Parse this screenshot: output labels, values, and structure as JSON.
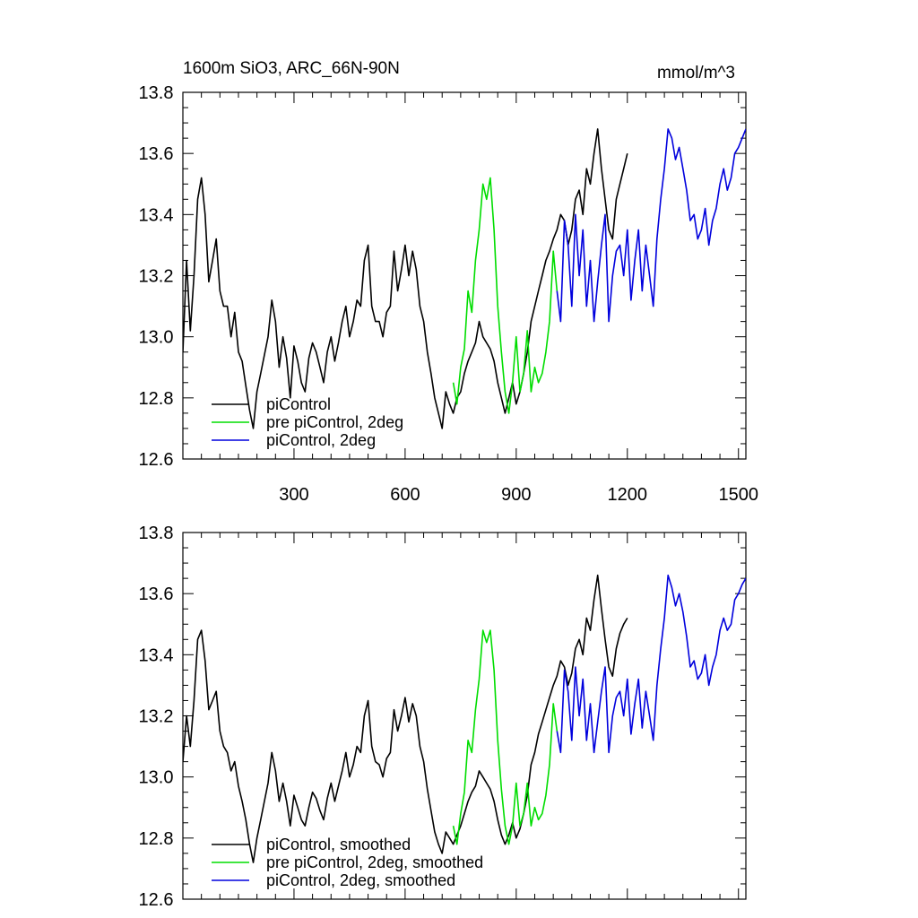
{
  "chart_data": [
    {
      "type": "line",
      "title": "1600m SiO3, ARC_66N-90N",
      "units": "mmol/m^3",
      "xlabel": "",
      "ylabel": "",
      "xlim": [
        0,
        1520
      ],
      "ylim": [
        12.6,
        13.8
      ],
      "xticks": [
        300,
        600,
        900,
        1200,
        1500
      ],
      "yticks": [
        12.6,
        12.8,
        13.0,
        13.2,
        13.4,
        13.6,
        13.8
      ],
      "x_tick_labels": [
        "300",
        "600",
        "900",
        "1200",
        "1500"
      ],
      "y_tick_labels": [
        "12.6",
        "12.8",
        "13.0",
        "13.2",
        "13.4",
        "13.6",
        "13.8"
      ],
      "legend_position": "bottom-left",
      "series": [
        {
          "name": "piControl",
          "color": "#000000",
          "x": [
            0,
            10,
            20,
            30,
            40,
            50,
            60,
            70,
            80,
            90,
            100,
            110,
            120,
            130,
            140,
            150,
            160,
            170,
            180,
            190,
            200,
            210,
            220,
            230,
            240,
            250,
            260,
            270,
            280,
            290,
            300,
            310,
            320,
            330,
            340,
            350,
            360,
            370,
            380,
            390,
            400,
            410,
            420,
            430,
            440,
            450,
            460,
            470,
            480,
            490,
            500,
            510,
            520,
            530,
            540,
            550,
            560,
            570,
            580,
            590,
            600,
            610,
            620,
            630,
            640,
            650,
            660,
            670,
            680,
            690,
            700,
            710,
            720,
            730,
            740,
            750,
            760,
            770,
            780,
            790,
            800,
            810,
            820,
            830,
            840,
            850,
            860,
            870,
            880,
            890,
            900,
            910,
            920,
            930,
            940,
            950,
            960,
            970,
            980,
            990,
            1000,
            1010,
            1020,
            1030,
            1040,
            1050,
            1060,
            1070,
            1080,
            1090,
            1100,
            1110,
            1120,
            1130,
            1140,
            1150,
            1160,
            1170,
            1180,
            1190,
            1200
          ],
          "values": [
            12.95,
            13.25,
            13.02,
            13.2,
            13.45,
            13.52,
            13.4,
            13.18,
            13.25,
            13.32,
            13.15,
            13.1,
            13.1,
            13.0,
            13.08,
            12.95,
            12.92,
            12.84,
            12.76,
            12.7,
            12.82,
            12.88,
            12.94,
            13.0,
            13.12,
            13.05,
            12.9,
            13.0,
            12.93,
            12.8,
            12.97,
            12.92,
            12.85,
            12.82,
            12.93,
            12.98,
            12.95,
            12.9,
            12.85,
            12.95,
            13.0,
            12.92,
            12.98,
            13.05,
            13.1,
            13.0,
            13.05,
            13.12,
            13.1,
            13.25,
            13.3,
            13.1,
            13.05,
            13.05,
            13.0,
            13.08,
            13.1,
            13.28,
            13.15,
            13.22,
            13.3,
            13.2,
            13.28,
            13.22,
            13.1,
            13.05,
            12.95,
            12.88,
            12.8,
            12.75,
            12.7,
            12.82,
            12.78,
            12.75,
            12.8,
            12.82,
            12.88,
            12.92,
            12.95,
            12.98,
            13.05,
            13.0,
            12.98,
            12.96,
            12.92,
            12.85,
            12.8,
            12.75,
            12.8,
            12.85,
            12.78,
            12.82,
            12.88,
            12.95,
            13.05,
            13.1,
            13.15,
            13.2,
            13.25,
            13.28,
            13.32,
            13.35,
            13.4,
            13.38,
            13.3,
            13.35,
            13.45,
            13.48,
            13.4,
            13.55,
            13.5,
            13.6,
            13.68,
            13.55,
            13.45,
            13.35,
            13.32,
            13.45,
            13.5,
            13.55,
            13.6
          ]
        },
        {
          "name": "pre piControl, 2deg",
          "color": "#00dd00",
          "x": [
            730,
            740,
            750,
            760,
            770,
            780,
            790,
            800,
            810,
            820,
            830,
            840,
            850,
            860,
            870,
            880,
            890,
            900,
            910,
            920,
            930,
            940,
            950,
            960,
            970,
            980,
            990,
            1000,
            1010
          ],
          "values": [
            12.85,
            12.78,
            12.9,
            12.96,
            13.15,
            13.08,
            13.25,
            13.35,
            13.5,
            13.45,
            13.52,
            13.35,
            13.1,
            12.95,
            12.82,
            12.75,
            12.85,
            13.0,
            12.82,
            12.88,
            13.02,
            12.82,
            12.9,
            12.85,
            12.88,
            12.95,
            13.05,
            13.28,
            13.15
          ]
        },
        {
          "name": "piControl, 2deg",
          "color": "#0000dd",
          "x": [
            1010,
            1020,
            1030,
            1040,
            1050,
            1060,
            1070,
            1080,
            1090,
            1100,
            1110,
            1120,
            1130,
            1140,
            1150,
            1160,
            1170,
            1180,
            1190,
            1200,
            1210,
            1220,
            1230,
            1240,
            1250,
            1260,
            1270,
            1280,
            1290,
            1300,
            1310,
            1320,
            1330,
            1340,
            1350,
            1360,
            1370,
            1380,
            1390,
            1400,
            1410,
            1420,
            1430,
            1440,
            1450,
            1460,
            1470,
            1480,
            1490,
            1500,
            1510,
            1520
          ],
          "values": [
            13.15,
            13.05,
            13.38,
            13.3,
            13.1,
            13.4,
            13.2,
            13.35,
            13.1,
            13.25,
            13.05,
            13.18,
            13.3,
            13.4,
            13.05,
            13.2,
            13.28,
            13.3,
            13.2,
            13.35,
            13.12,
            13.25,
            13.35,
            13.15,
            13.3,
            13.2,
            13.1,
            13.32,
            13.45,
            13.55,
            13.68,
            13.65,
            13.58,
            13.62,
            13.55,
            13.48,
            13.38,
            13.4,
            13.32,
            13.35,
            13.42,
            13.3,
            13.38,
            13.42,
            13.5,
            13.55,
            13.48,
            13.52,
            13.6,
            13.62,
            13.65,
            13.68
          ]
        }
      ]
    },
    {
      "type": "line",
      "title": "",
      "xlabel": "",
      "ylabel": "",
      "xlim": [
        0,
        1520
      ],
      "ylim": [
        12.6,
        13.8
      ],
      "xticks": [
        300,
        600,
        900,
        1200,
        1500
      ],
      "yticks": [
        12.6,
        12.8,
        13.0,
        13.2,
        13.4,
        13.6,
        13.8
      ],
      "x_tick_labels": [],
      "y_tick_labels": [
        "12.6",
        "12.8",
        "13.0",
        "13.2",
        "13.4",
        "13.6",
        "13.8"
      ],
      "legend_position": "bottom-left",
      "series": [
        {
          "name": "piControl, smoothed",
          "color": "#000000",
          "x": [
            0,
            10,
            20,
            30,
            40,
            50,
            60,
            70,
            80,
            90,
            100,
            110,
            120,
            130,
            140,
            150,
            160,
            170,
            180,
            190,
            200,
            210,
            220,
            230,
            240,
            250,
            260,
            270,
            280,
            290,
            300,
            310,
            320,
            330,
            340,
            350,
            360,
            370,
            380,
            390,
            400,
            410,
            420,
            430,
            440,
            450,
            460,
            470,
            480,
            490,
            500,
            510,
            520,
            530,
            540,
            550,
            560,
            570,
            580,
            590,
            600,
            610,
            620,
            630,
            640,
            650,
            660,
            670,
            680,
            690,
            700,
            710,
            720,
            730,
            740,
            750,
            760,
            770,
            780,
            790,
            800,
            810,
            820,
            830,
            840,
            850,
            860,
            870,
            880,
            890,
            900,
            910,
            920,
            930,
            940,
            950,
            960,
            970,
            980,
            990,
            1000,
            1010,
            1020,
            1030,
            1040,
            1050,
            1060,
            1070,
            1080,
            1090,
            1100,
            1110,
            1120,
            1130,
            1140,
            1150,
            1160,
            1170,
            1180,
            1190,
            1200
          ],
          "values": [
            13.05,
            13.2,
            13.1,
            13.25,
            13.45,
            13.48,
            13.38,
            13.22,
            13.25,
            13.28,
            13.15,
            13.1,
            13.08,
            13.02,
            13.05,
            12.97,
            12.92,
            12.86,
            12.78,
            12.72,
            12.8,
            12.86,
            12.92,
            12.98,
            13.08,
            13.02,
            12.92,
            12.98,
            12.92,
            12.84,
            12.94,
            12.9,
            12.86,
            12.84,
            12.9,
            12.95,
            12.93,
            12.89,
            12.86,
            12.93,
            12.98,
            12.92,
            12.97,
            13.02,
            13.08,
            13.0,
            13.04,
            13.1,
            13.08,
            13.2,
            13.25,
            13.1,
            13.05,
            13.04,
            13.0,
            13.06,
            13.08,
            13.22,
            13.15,
            13.2,
            13.26,
            13.18,
            13.24,
            13.2,
            13.1,
            13.05,
            12.96,
            12.89,
            12.82,
            12.78,
            12.75,
            12.82,
            12.8,
            12.78,
            12.81,
            12.84,
            12.88,
            12.92,
            12.95,
            12.97,
            13.02,
            13.0,
            12.98,
            12.96,
            12.92,
            12.86,
            12.81,
            12.78,
            12.81,
            12.85,
            12.8,
            12.83,
            12.88,
            12.94,
            13.04,
            13.08,
            13.14,
            13.18,
            13.22,
            13.26,
            13.3,
            13.33,
            13.38,
            13.36,
            13.3,
            13.34,
            13.42,
            13.45,
            13.4,
            13.52,
            13.48,
            13.58,
            13.66,
            13.55,
            13.45,
            13.36,
            13.33,
            13.42,
            13.47,
            13.5,
            13.52
          ]
        },
        {
          "name": "pre piControl, 2deg, smoothed",
          "color": "#00dd00",
          "x": [
            730,
            740,
            750,
            760,
            770,
            780,
            790,
            800,
            810,
            820,
            830,
            840,
            850,
            860,
            870,
            880,
            890,
            900,
            910,
            920,
            930,
            940,
            950,
            960,
            970,
            980,
            990,
            1000,
            1010
          ],
          "values": [
            12.84,
            12.78,
            12.88,
            12.95,
            13.12,
            13.08,
            13.22,
            13.32,
            13.48,
            13.44,
            13.48,
            13.35,
            13.12,
            12.96,
            12.84,
            12.78,
            12.84,
            12.98,
            12.84,
            12.88,
            12.98,
            12.84,
            12.9,
            12.86,
            12.88,
            12.94,
            13.04,
            13.24,
            13.15
          ]
        },
        {
          "name": "piControl, 2deg, smoothed",
          "color": "#0000dd",
          "x": [
            1010,
            1020,
            1030,
            1040,
            1050,
            1060,
            1070,
            1080,
            1090,
            1100,
            1110,
            1120,
            1130,
            1140,
            1150,
            1160,
            1170,
            1180,
            1190,
            1200,
            1210,
            1220,
            1230,
            1240,
            1250,
            1260,
            1270,
            1280,
            1290,
            1300,
            1310,
            1320,
            1330,
            1340,
            1350,
            1360,
            1370,
            1380,
            1390,
            1400,
            1410,
            1420,
            1430,
            1440,
            1450,
            1460,
            1470,
            1480,
            1490,
            1500,
            1510,
            1520
          ],
          "values": [
            13.15,
            13.08,
            13.35,
            13.28,
            13.12,
            13.36,
            13.2,
            13.32,
            13.12,
            13.24,
            13.08,
            13.18,
            13.28,
            13.36,
            13.08,
            13.2,
            13.26,
            13.28,
            13.2,
            13.32,
            13.14,
            13.24,
            13.32,
            13.16,
            13.28,
            13.2,
            13.12,
            13.3,
            13.42,
            13.52,
            13.66,
            13.62,
            13.56,
            13.6,
            13.54,
            13.46,
            13.36,
            13.38,
            13.32,
            13.34,
            13.4,
            13.3,
            13.36,
            13.4,
            13.48,
            13.52,
            13.48,
            13.5,
            13.58,
            13.6,
            13.63,
            13.65
          ]
        }
      ]
    }
  ]
}
